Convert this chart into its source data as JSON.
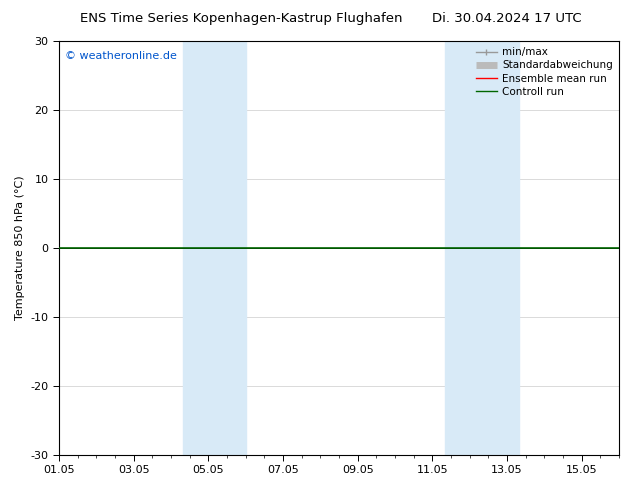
{
  "title_left": "ENS Time Series Kopenhagen-Kastrup Flughafen",
  "title_right": "Di. 30.04.2024 17 UTC",
  "ylabel": "Temperature 850 hPa (°C)",
  "ylim": [
    -30,
    30
  ],
  "yticks": [
    -30,
    -20,
    -10,
    0,
    10,
    20,
    30
  ],
  "xtick_labels": [
    "01.05",
    "03.05",
    "05.05",
    "07.05",
    "09.05",
    "11.05",
    "13.05",
    "15.05"
  ],
  "xtick_positions": [
    0,
    2,
    4,
    6,
    8,
    10,
    12,
    14
  ],
  "xlim": [
    0,
    15
  ],
  "copyright": "© weatheronline.de",
  "copyright_color": "#0055cc",
  "shaded_bands": [
    {
      "x_start": 3.33,
      "x_end": 5.0,
      "color": "#d8eaf7"
    },
    {
      "x_start": 10.33,
      "x_end": 12.33,
      "color": "#d8eaf7"
    }
  ],
  "hline_y": 0,
  "hline_color": "#000000",
  "hline_lw": 0.7,
  "green_line_y": 0,
  "green_line_color": "#006600",
  "green_line_lw": 1.2,
  "background_color": "#ffffff",
  "plot_bg_color": "#ffffff",
  "legend_items": [
    {
      "label": "min/max",
      "color": "#999999",
      "lw": 1.0,
      "style": "minmax"
    },
    {
      "label": "Standardabweichung",
      "color": "#bbbbbb",
      "lw": 5,
      "style": "thick"
    },
    {
      "label": "Ensemble mean run",
      "color": "#ff0000",
      "lw": 1.0,
      "style": "line"
    },
    {
      "label": "Controll run",
      "color": "#006600",
      "lw": 1.0,
      "style": "line"
    }
  ],
  "title_fontsize": 9.5,
  "axis_label_fontsize": 8,
  "tick_fontsize": 8,
  "legend_fontsize": 7.5,
  "copyright_fontsize": 8
}
